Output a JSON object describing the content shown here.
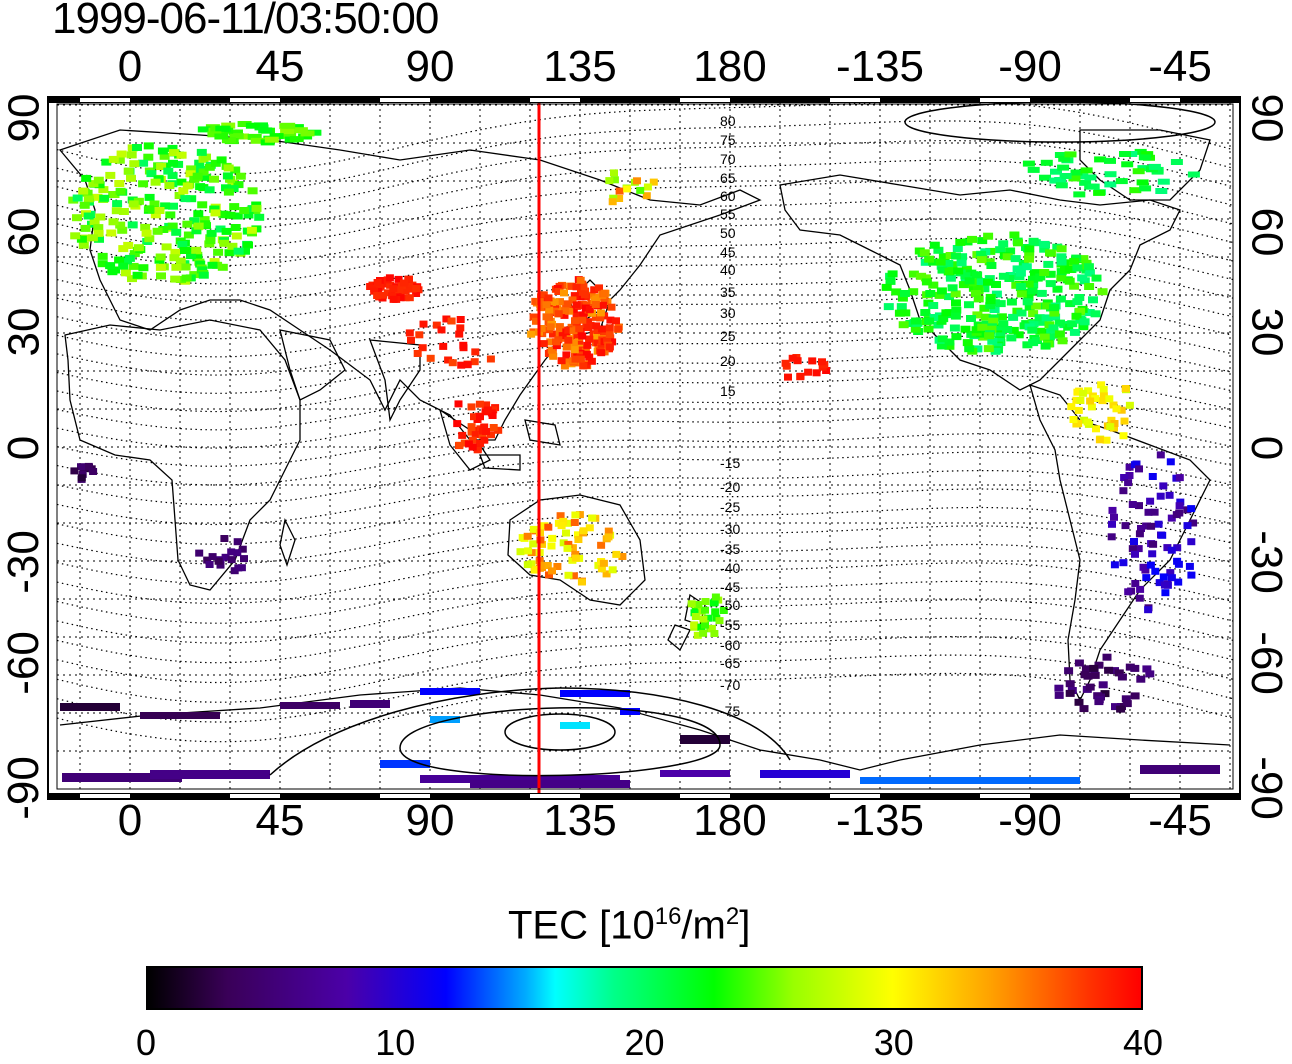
{
  "timestamp": "1999-06-11/03:50:00",
  "map": {
    "lon_top_labels": [
      "0",
      "45",
      "90",
      "135",
      "180",
      "-135",
      "-90",
      "-45"
    ],
    "lon_bottom_labels": [
      "0",
      "45",
      "90",
      "135",
      "180",
      "-135",
      "-90",
      "-45"
    ],
    "lat_left_labels": [
      "90",
      "60",
      "30",
      "0",
      "-30",
      "-60",
      "-90"
    ],
    "lat_right_labels": [
      "90",
      "60",
      "30",
      "0",
      "-30",
      "-60",
      "-90"
    ],
    "contour_labels_north": [
      "80",
      "75",
      "70",
      "65",
      "60",
      "55",
      "50",
      "45",
      "40",
      "35",
      "30",
      "25",
      "20",
      "15"
    ],
    "contour_labels_south": [
      "-15",
      "-20",
      "-25",
      "-30",
      "-35",
      "-40",
      "-45",
      "-50",
      "-55",
      "-60",
      "-65",
      "-70",
      "-75"
    ],
    "line_color": "#ff0000",
    "marker_longitude_deg": 123
  },
  "colorbar": {
    "title_main": "TEC  [10",
    "title_sup1": "16",
    "title_mid": "/m",
    "title_sup2": "2",
    "title_end": "]",
    "ticks": [
      "0",
      "10",
      "20",
      "30",
      "40"
    ],
    "range": [
      0,
      40
    ]
  }
}
